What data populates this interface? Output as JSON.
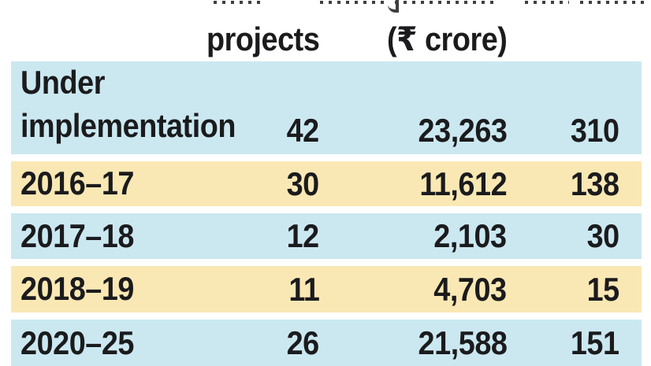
{
  "header": {
    "col_projects": "projects",
    "col_crore": "(₹ crore)"
  },
  "rows": [
    {
      "label": "Under\nimplementation",
      "projects": "42",
      "cost_crore": "23,263",
      "col4": "310"
    },
    {
      "label": "2016–17",
      "projects": "30",
      "cost_crore": "11,612",
      "col4": "138"
    },
    {
      "label": "2017–18",
      "projects": "12",
      "cost_crore": "2,103",
      "col4": "30"
    },
    {
      "label": "2018–19",
      "projects": "11",
      "cost_crore": "4,703",
      "col4": "15"
    },
    {
      "label": "2020–25",
      "projects": "26",
      "cost_crore": "21,588",
      "col4": "151"
    }
  ],
  "chart_data": {
    "type": "table",
    "columns": [
      "",
      "projects",
      "(₹ crore)",
      ""
    ],
    "rows": [
      [
        "Under implementation",
        42,
        23263,
        310
      ],
      [
        "2016-17",
        30,
        11612,
        138
      ],
      [
        "2017-18",
        12,
        2103,
        30
      ],
      [
        "2018-19",
        11,
        4703,
        15
      ],
      [
        "2020-25",
        26,
        21588,
        151
      ]
    ],
    "layout": "striped table, alternating light-blue and light-yellow rows; header line above visible words is cropped off at top of image"
  },
  "colors": {
    "row_blue": "#cbe8f1",
    "row_yellow": "#fae8b4",
    "text": "#1b1b1d"
  }
}
